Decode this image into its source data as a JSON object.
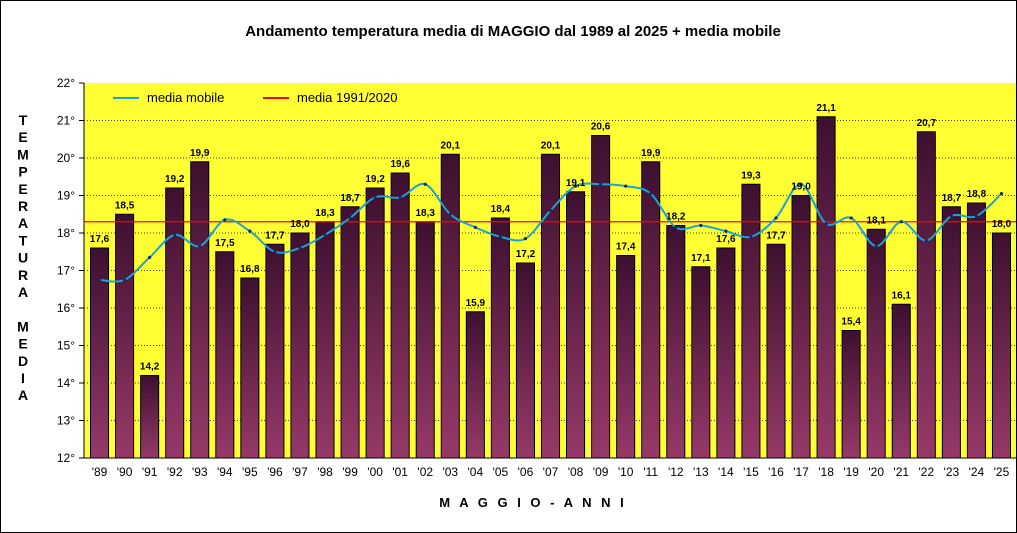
{
  "chart_data": {
    "type": "bar",
    "title": "Andamento temperatura media di MAGGIO dal 1989 al 2025 + media mobile",
    "ylabel_letters": [
      "T",
      "E",
      "M",
      "P",
      "E",
      "R",
      "A",
      "T",
      "U",
      "R",
      "A",
      "",
      "M",
      "E",
      "D",
      "I",
      "A"
    ],
    "xlabel": "M A G G I O  -  A N N I",
    "ylim": [
      12,
      22
    ],
    "yticks": [
      "12°",
      "13°",
      "14°",
      "15°",
      "16°",
      "17°",
      "18°",
      "19°",
      "20°",
      "21°",
      "22°"
    ],
    "categories": [
      "'89",
      "'90",
      "'91",
      "'92",
      "'93",
      "'94",
      "'95",
      "'96",
      "'97",
      "'98",
      "'99",
      "'00",
      "'01",
      "'02",
      "'03",
      "'04",
      "'05",
      "'06",
      "'07",
      "'08",
      "'09",
      "'10",
      "'11",
      "'12",
      "'13",
      "'14",
      "'15",
      "'16",
      "'17",
      "'18",
      "'19",
      "'20",
      "'21",
      "'22",
      "'23",
      "'24",
      "'25"
    ],
    "values": [
      17.6,
      18.5,
      14.2,
      19.2,
      19.9,
      17.5,
      16.8,
      17.7,
      18.0,
      18.3,
      18.7,
      19.2,
      19.6,
      18.3,
      20.1,
      15.9,
      18.4,
      17.2,
      20.1,
      19.1,
      20.6,
      17.4,
      19.9,
      18.2,
      17.1,
      17.6,
      19.3,
      17.7,
      19.0,
      21.1,
      15.4,
      18.1,
      16.1,
      20.7,
      18.7,
      18.8,
      18.0
    ],
    "value_labels": [
      "17,6",
      "18,5",
      "14,2",
      "19,2",
      "19,9",
      "17,5",
      "16,8",
      "17,7",
      "18,0",
      "18,3",
      "18,7",
      "19,2",
      "19,6",
      "18,3",
      "20,1",
      "15,9",
      "18,4",
      "17,2",
      "20,1",
      "19,1",
      "20,6",
      "17,4",
      "19,9",
      "18,2",
      "17,1",
      "17,6",
      "19,3",
      "17,7",
      "19,0",
      "21,1",
      "15,4",
      "18,1",
      "16,1",
      "20,7",
      "18,7",
      "18,8",
      "18,0"
    ],
    "moving_average": [
      16.75,
      16.75,
      17.35,
      17.95,
      17.65,
      18.35,
      18.05,
      17.5,
      17.6,
      17.95,
      18.4,
      18.95,
      18.95,
      19.3,
      18.5,
      18.15,
      17.9,
      17.85,
      18.6,
      19.25,
      19.3,
      19.25,
      19.05,
      18.15,
      18.2,
      18.05,
      17.9,
      18.4,
      19.3,
      18.25,
      18.4,
      17.65,
      18.3,
      17.8,
      18.45,
      18.45,
      19.05
    ],
    "reference_value": 18.3,
    "legend": [
      {
        "name": "media mobile",
        "color": "#1aa3d9"
      },
      {
        "name": "media 1991/2020",
        "color": "#ff0000"
      }
    ],
    "legend_position": "top-left",
    "grid": "horizontal dotted",
    "colors": {
      "plot_bg": "#ffff33",
      "bar_top": "#3d1030",
      "bar_bottom": "#963968",
      "moving_avg": "#1aa3d9",
      "reference": "#ff0000"
    }
  }
}
